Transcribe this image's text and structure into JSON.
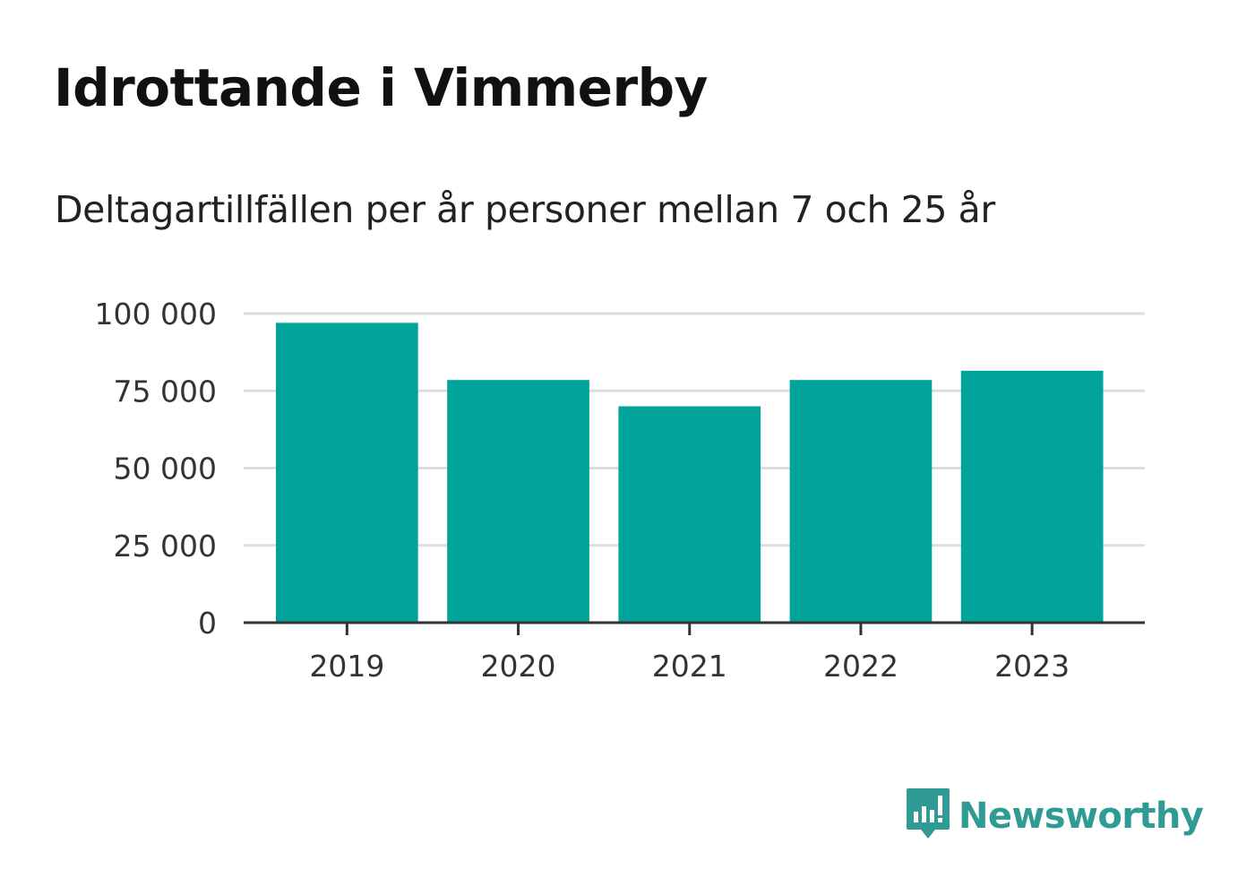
{
  "title": "Idrottande i Vimmerby",
  "subtitle": "Deltagartillfällen per år personer mellan 7 och 25 år",
  "logo": {
    "text": "Newsworthy",
    "icon": "bar-chart-speech-bubble-icon",
    "color": "#2f9b94"
  },
  "colors": {
    "bar": "#00a49a",
    "grid": "#dddddd",
    "axis": "#333333",
    "title": "#111111"
  },
  "chart_data": {
    "type": "bar",
    "title": "Idrottande i Vimmerby",
    "subtitle": "Deltagartillfällen per år personer mellan 7 och 25 år",
    "xlabel": "",
    "ylabel": "",
    "categories": [
      "2019",
      "2020",
      "2021",
      "2022",
      "2023"
    ],
    "values": [
      97000,
      78500,
      70000,
      78500,
      81500
    ],
    "ylim": [
      0,
      100000
    ],
    "yticks": [
      0,
      25000,
      50000,
      75000,
      100000
    ],
    "ytick_labels": [
      "0",
      "25 000",
      "50 000",
      "75 000",
      "100 000"
    ],
    "grid": true,
    "legend": "none"
  }
}
